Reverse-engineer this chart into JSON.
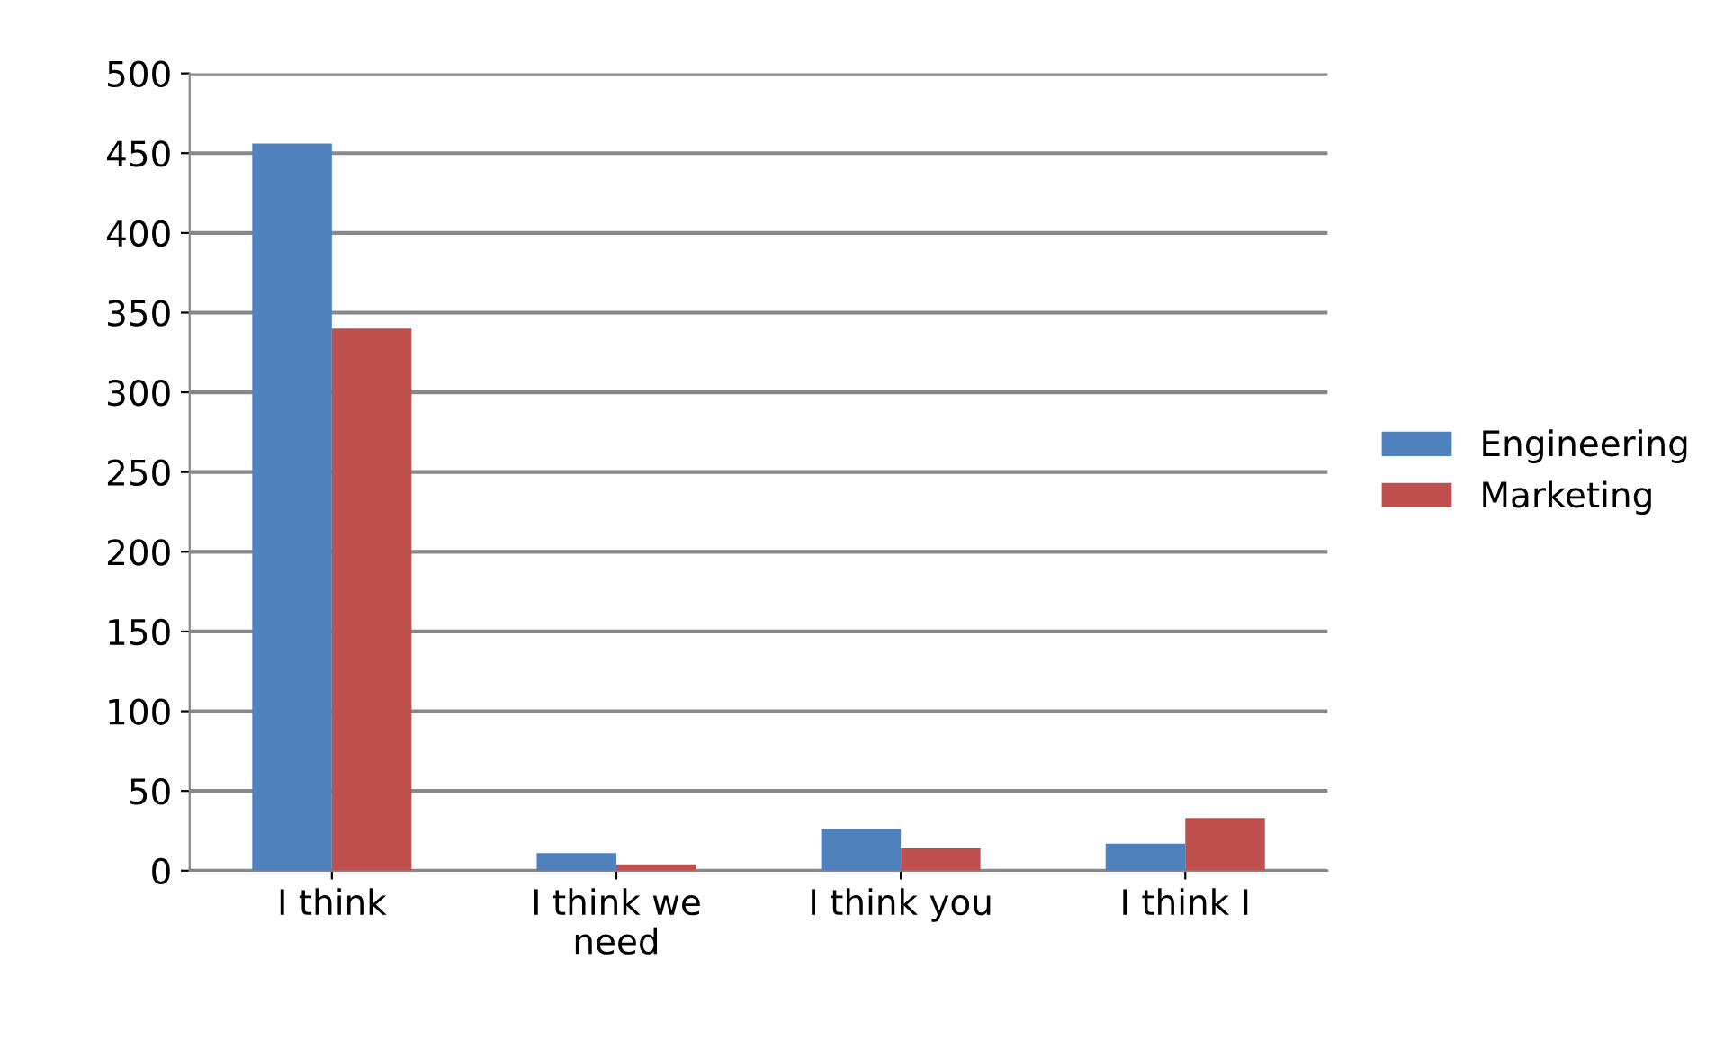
{
  "chart_data": {
    "type": "bar",
    "categories": [
      "I think",
      "I think we\nneed",
      "I think you",
      "I think I"
    ],
    "series": [
      {
        "name": "Engineering",
        "color": "#4f81bd",
        "values": [
          456,
          11,
          26,
          17
        ]
      },
      {
        "name": "Marketing",
        "color": "#c0504d",
        "values": [
          340,
          4,
          14,
          33
        ]
      }
    ],
    "ylim": [
      0,
      500
    ],
    "yticks": [
      0,
      50,
      100,
      150,
      200,
      250,
      300,
      350,
      400,
      450,
      500
    ],
    "grid": "y",
    "legend": "right"
  }
}
